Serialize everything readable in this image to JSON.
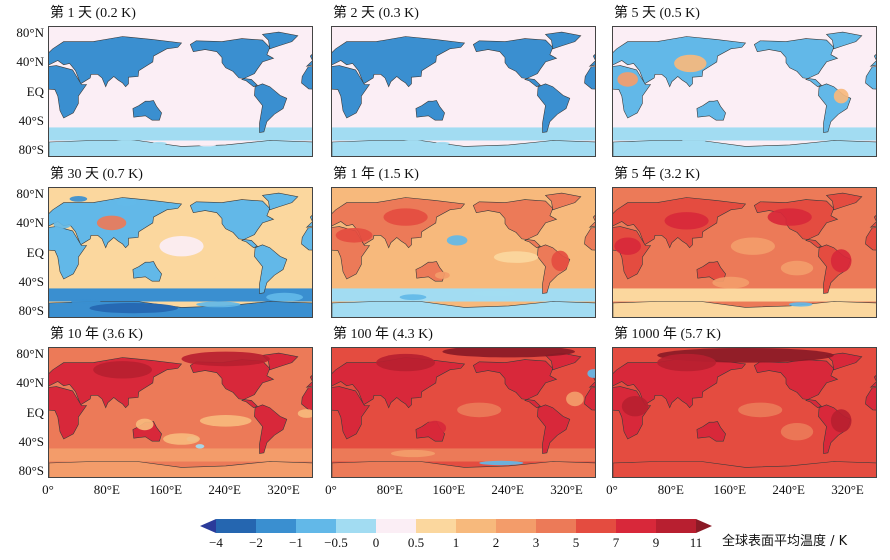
{
  "chart_data": {
    "type": "heatmap",
    "panels": [
      {
        "title": "第 1 天 (0.2 K)",
        "global_mean_K": 0.2,
        "land_level": 2,
        "ocean_level": 5,
        "south_ocean_level": 4
      },
      {
        "title": "第 2 天 (0.3 K)",
        "global_mean_K": 0.3,
        "land_level": 2,
        "ocean_level": 5,
        "south_ocean_level": 4
      },
      {
        "title": "第 5 天 (0.5 K)",
        "global_mean_K": 0.5,
        "land_level": 3,
        "ocean_level": 5,
        "south_ocean_level": 4
      },
      {
        "title": "第 30 天 (0.7 K)",
        "global_mean_K": 0.7,
        "land_level": 3,
        "ocean_level": 6,
        "south_ocean_level": 2
      },
      {
        "title": "第 1 年 (1.5 K)",
        "global_mean_K": 1.5,
        "land_level": 9,
        "ocean_level": 7,
        "south_ocean_level": 4
      },
      {
        "title": "第 5 年 (3.2 K)",
        "global_mean_K": 3.2,
        "land_level": 10,
        "ocean_level": 9,
        "south_ocean_level": 6
      },
      {
        "title": "第 10 年 (3.6 K)",
        "global_mean_K": 3.6,
        "land_level": 11,
        "ocean_level": 9,
        "south_ocean_level": 8
      },
      {
        "title": "第 100 年 (4.3 K)",
        "global_mean_K": 4.3,
        "land_level": 11,
        "ocean_level": 10,
        "south_ocean_level": 9
      },
      {
        "title": "第 1000 年 (5.7 K)",
        "global_mean_K": 5.7,
        "land_level": 11,
        "ocean_level": 10,
        "south_ocean_level": 10
      }
    ],
    "y_ticks": [
      "80°N",
      "40°N",
      "EQ",
      "40°S",
      "80°S"
    ],
    "y_tick_values": [
      80,
      40,
      0,
      -40,
      -80
    ],
    "x_ticks": [
      "0°",
      "80°E",
      "160°E",
      "240°E",
      "320°E"
    ],
    "x_tick_values": [
      0,
      80,
      160,
      240,
      320
    ],
    "lat_range": [
      -90,
      90
    ],
    "lon_range": [
      0,
      360
    ],
    "colorbar": {
      "title": "全球表面平均温度 / K",
      "boundaries": [
        "−4",
        "−2",
        "−1",
        "−0.5",
        "0",
        "0.5",
        "1",
        "2",
        "3",
        "5",
        "7",
        "9",
        "11"
      ],
      "boundary_values": [
        -4,
        -2,
        -1,
        -0.5,
        0,
        0.5,
        1,
        2,
        3,
        5,
        7,
        9,
        11
      ],
      "colors": [
        "#2a3b9a",
        "#2566b0",
        "#3a8fd0",
        "#62b8e8",
        "#a2dcf2",
        "#fbeef5",
        "#fbd79e",
        "#f7b97c",
        "#f39c6a",
        "#ec7a58",
        "#e44c40",
        "#d8283a",
        "#b81f30",
        "#8b1a26"
      ]
    }
  }
}
